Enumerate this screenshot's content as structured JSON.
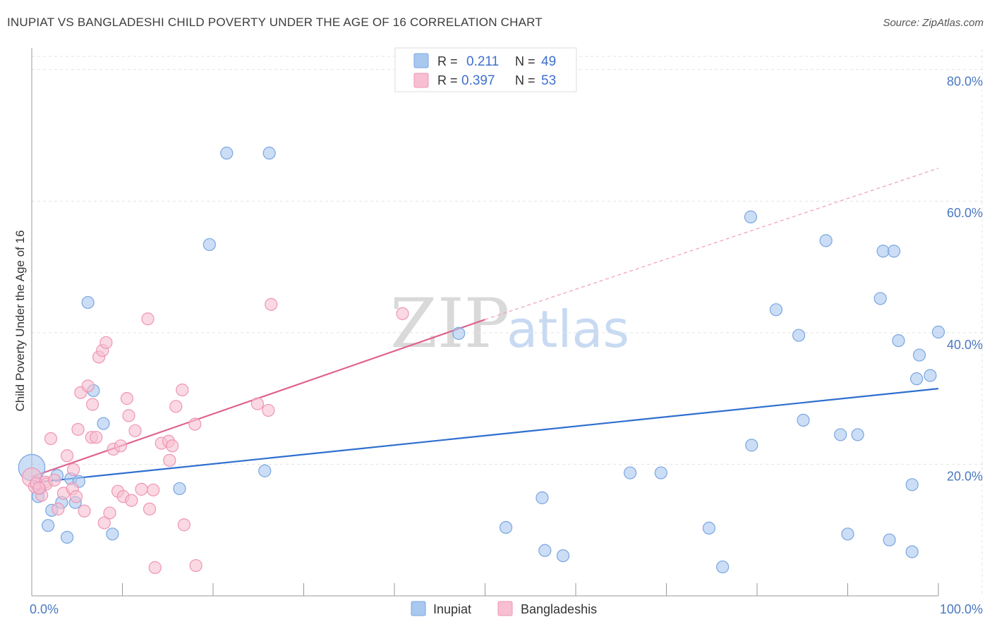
{
  "title": "INUPIAT VS BANGLADESHI CHILD POVERTY UNDER THE AGE OF 16 CORRELATION CHART",
  "source": "Source: ZipAtlas.com",
  "watermark": {
    "zip": "ZIP",
    "atlas": "atlas"
  },
  "legend_top": {
    "rows": [
      {
        "r_label": "R = ",
        "r_value": "0.211",
        "n_label": "N = ",
        "n_value": "49",
        "color": "#a9c8f0",
        "stroke": "#7aa6e0"
      },
      {
        "r_label": "R = ",
        "r_value": "0.397",
        "n_label": "N = ",
        "n_value": "53",
        "color": "#f7bfd1",
        "stroke": "#ee95b4"
      }
    ]
  },
  "legend_bottom": [
    {
      "label": "Inupiat",
      "color": "#a9c8f0",
      "stroke": "#7aa6e0"
    },
    {
      "label": "Bangladeshis",
      "color": "#f7bfd1",
      "stroke": "#ee95b4"
    }
  ],
  "chart_data": {
    "type": "scatter",
    "title": "INUPIAT VS BANGLADESHI CHILD POVERTY UNDER THE AGE OF 16 CORRELATION CHART",
    "xlabel": "",
    "ylabel": "Child Poverty Under the Age of 16",
    "xlim": [
      0,
      100
    ],
    "ylim": [
      0,
      82
    ],
    "x_tick_labels": [
      {
        "value": 0,
        "label": "0.0%"
      },
      {
        "value": 100,
        "label": "100.0%"
      }
    ],
    "y_tick_labels": [
      {
        "value": 20,
        "label": "20.0%"
      },
      {
        "value": 40,
        "label": "40.0%"
      },
      {
        "value": 60,
        "label": "60.0%"
      },
      {
        "value": 80,
        "label": "80.0%"
      }
    ],
    "series": [
      {
        "name": "Inupiat",
        "color": "#a9c8f0",
        "stroke": "#7aa6e0",
        "trend": {
          "x0": 0,
          "y0": 17.2,
          "x1": 100,
          "y1": 31.5,
          "color": "#2f6fcf"
        },
        "points": [
          [
            0.0,
            19.5,
            2.2
          ],
          [
            0.7,
            15.1,
            1
          ],
          [
            0.9,
            16.3,
            1
          ],
          [
            1.8,
            10.7,
            1
          ],
          [
            2.2,
            13.0,
            1
          ],
          [
            2.8,
            18.3,
            1
          ],
          [
            3.3,
            14.2,
            1
          ],
          [
            3.9,
            8.9,
            1
          ],
          [
            4.3,
            17.8,
            1
          ],
          [
            4.8,
            14.2,
            1
          ],
          [
            5.2,
            17.4,
            1
          ],
          [
            6.2,
            44.6,
            1
          ],
          [
            6.8,
            31.2,
            1
          ],
          [
            7.9,
            26.2,
            1
          ],
          [
            8.9,
            9.4,
            1
          ],
          [
            16.3,
            16.3,
            1
          ],
          [
            19.6,
            53.4,
            1
          ],
          [
            21.5,
            67.3,
            1
          ],
          [
            25.7,
            19.0,
            1
          ],
          [
            26.2,
            67.3,
            1
          ],
          [
            47.1,
            39.9,
            1
          ],
          [
            52.3,
            10.4,
            1
          ],
          [
            56.3,
            14.9,
            1
          ],
          [
            56.6,
            6.9,
            1
          ],
          [
            58.6,
            6.1,
            1
          ],
          [
            66.0,
            18.7,
            1
          ],
          [
            69.4,
            18.7,
            1
          ],
          [
            74.7,
            10.3,
            1
          ],
          [
            76.2,
            4.4,
            1
          ],
          [
            79.3,
            57.6,
            1
          ],
          [
            79.4,
            22.9,
            1
          ],
          [
            82.1,
            43.5,
            1
          ],
          [
            84.6,
            39.6,
            1
          ],
          [
            85.1,
            26.7,
            1
          ],
          [
            87.6,
            54.0,
            1
          ],
          [
            89.2,
            24.5,
            1
          ],
          [
            90.0,
            9.4,
            1
          ],
          [
            91.1,
            24.5,
            1
          ],
          [
            93.6,
            45.2,
            1
          ],
          [
            93.9,
            52.4,
            1
          ],
          [
            94.6,
            8.5,
            1
          ],
          [
            95.1,
            52.4,
            1
          ],
          [
            95.6,
            38.8,
            1
          ],
          [
            97.1,
            6.7,
            1
          ],
          [
            97.1,
            16.9,
            1
          ],
          [
            97.6,
            33.0,
            1
          ],
          [
            97.9,
            36.6,
            1
          ],
          [
            99.1,
            33.5,
            1
          ],
          [
            100.0,
            40.1,
            1
          ]
        ]
      },
      {
        "name": "Bangladeshis",
        "color": "#f7bfd1",
        "stroke": "#ee95b4",
        "trend": {
          "x0": 0,
          "y0": 18.1,
          "x1": 50,
          "y1": 42.0,
          "dash_to_x": 100,
          "dash_to_y": 65.0,
          "color": "#e0628f"
        },
        "points": [
          [
            0.0,
            18.0,
            1.6
          ],
          [
            0.3,
            16.6,
            1
          ],
          [
            0.5,
            17.1,
            1
          ],
          [
            1.1,
            15.3,
            1
          ],
          [
            1.5,
            17.3,
            1
          ],
          [
            1.6,
            17.0,
            1
          ],
          [
            2.1,
            23.9,
            1
          ],
          [
            2.5,
            17.6,
            1
          ],
          [
            2.9,
            13.2,
            1
          ],
          [
            3.5,
            15.6,
            1
          ],
          [
            3.9,
            21.3,
            1
          ],
          [
            4.5,
            16.3,
            1
          ],
          [
            4.6,
            19.2,
            1
          ],
          [
            4.9,
            15.1,
            1
          ],
          [
            5.1,
            25.3,
            1
          ],
          [
            5.4,
            30.9,
            1
          ],
          [
            5.8,
            12.9,
            1
          ],
          [
            6.2,
            31.9,
            1
          ],
          [
            6.6,
            24.1,
            1
          ],
          [
            6.7,
            29.1,
            1
          ],
          [
            7.1,
            24.1,
            1
          ],
          [
            7.4,
            36.3,
            1
          ],
          [
            7.8,
            37.3,
            1
          ],
          [
            8.0,
            11.1,
            1
          ],
          [
            8.2,
            38.5,
            1
          ],
          [
            8.6,
            12.6,
            1
          ],
          [
            9.0,
            22.3,
            1
          ],
          [
            9.5,
            15.9,
            1
          ],
          [
            9.8,
            22.8,
            1
          ],
          [
            10.1,
            15.1,
            1
          ],
          [
            10.5,
            30.0,
            1
          ],
          [
            10.7,
            27.4,
            1
          ],
          [
            11.0,
            14.5,
            1
          ],
          [
            11.4,
            25.1,
            1
          ],
          [
            12.1,
            16.2,
            1
          ],
          [
            12.8,
            42.1,
            1
          ],
          [
            13.0,
            13.2,
            1
          ],
          [
            13.4,
            16.1,
            1
          ],
          [
            13.6,
            4.3,
            1
          ],
          [
            14.3,
            23.2,
            1
          ],
          [
            15.1,
            23.5,
            1
          ],
          [
            15.2,
            20.6,
            1
          ],
          [
            15.5,
            22.8,
            1
          ],
          [
            15.9,
            28.8,
            1
          ],
          [
            16.6,
            31.3,
            1
          ],
          [
            16.8,
            10.8,
            1
          ],
          [
            18.0,
            26.1,
            1
          ],
          [
            18.1,
            4.6,
            1
          ],
          [
            24.9,
            29.2,
            1
          ],
          [
            26.1,
            28.2,
            1
          ],
          [
            26.4,
            44.3,
            1
          ],
          [
            40.9,
            42.9,
            1
          ],
          [
            0.8,
            16.4,
            1
          ]
        ]
      }
    ]
  }
}
